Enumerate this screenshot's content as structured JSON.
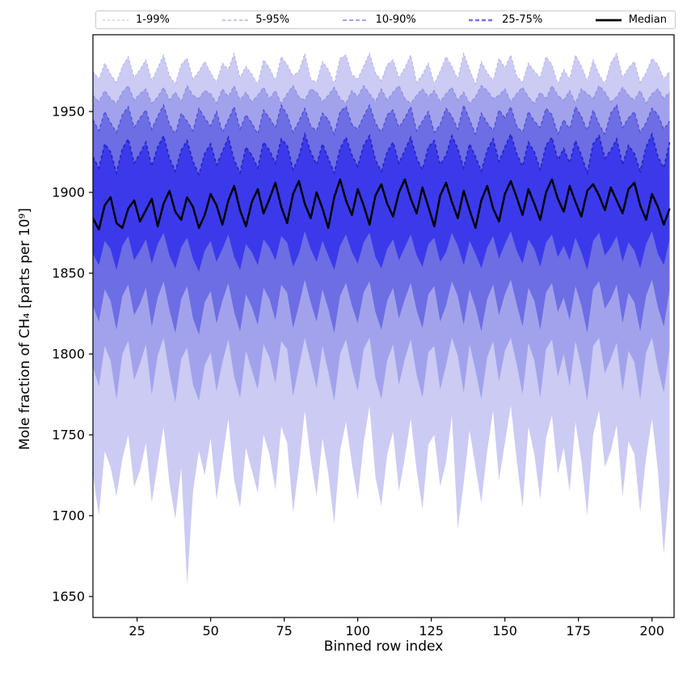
{
  "figure": {
    "background": "#ffffff"
  },
  "legend": {
    "items": [
      {
        "label": "1-99%",
        "color": "#b9b9ee",
        "line_width": 1.0,
        "dash": "3,3"
      },
      {
        "label": "5-95%",
        "color": "#a0a0ea",
        "line_width": 1.2,
        "dash": "4,3"
      },
      {
        "label": "10-90%",
        "color": "#8585e6",
        "line_width": 1.6,
        "dash": "5,3"
      },
      {
        "label": "25-75%",
        "color": "#7171e3",
        "line_width": 2.4,
        "dash": "5,3"
      },
      {
        "label": "Median",
        "color": "#000000",
        "line_width": 2.8,
        "dash": ""
      }
    ]
  },
  "axes": {
    "x_label": "Binned row index",
    "y_label": "Mole fraction of CH₄ [parts per 10⁹]",
    "x_ticks": [
      25,
      50,
      75,
      100,
      125,
      150,
      175,
      200
    ],
    "y_ticks": [
      1650,
      1700,
      1750,
      1800,
      1850,
      1900,
      1950
    ]
  },
  "chart_data": {
    "type": "area",
    "title": "",
    "xlabel": "Binned row index",
    "ylabel": "Mole fraction of CH₄ [parts per 10⁹]",
    "xlim": [
      10,
      207.5
    ],
    "ylim": [
      1637,
      1997.5
    ],
    "grid": false,
    "legend_position": "top",
    "x_start": 10,
    "x_step": 2,
    "bands": [
      {
        "name": "1-99%",
        "lower": "p01",
        "upper": "p99",
        "fill": "#cbcbf3",
        "edge": "#b3b3e9",
        "edge_width": 1.0,
        "dash": "3,3"
      },
      {
        "name": "5-95%",
        "lower": "p05",
        "upper": "p95",
        "fill": "#a2a2ec",
        "edge": "#8a8ae3",
        "edge_width": 1.1,
        "dash": "4,3"
      },
      {
        "name": "10-90%",
        "lower": "p10",
        "upper": "p90",
        "fill": "#6d6de4",
        "edge": "#4e4ed6",
        "edge_width": 1.3,
        "dash": "4,3"
      },
      {
        "name": "25-75%",
        "lower": "p25",
        "upper": "p75",
        "fill": "#3a3aeb",
        "edge": "#2525c0",
        "edge_width": 1.7,
        "dash": "4,3"
      }
    ],
    "median_style": {
      "name": "Median",
      "color": "#000000",
      "width": 2.5
    },
    "series": {
      "p01": [
        1726,
        1700,
        1740,
        1730,
        1712,
        1735,
        1750,
        1718,
        1728,
        1745,
        1708,
        1732,
        1755,
        1720,
        1698,
        1730,
        1657,
        1715,
        1740,
        1725,
        1748,
        1710,
        1735,
        1760,
        1722,
        1705,
        1742,
        1728,
        1714,
        1750,
        1738,
        1716,
        1755,
        1745,
        1702,
        1730,
        1765,
        1735,
        1712,
        1748,
        1726,
        1695,
        1740,
        1758,
        1732,
        1710,
        1745,
        1768,
        1724,
        1706,
        1738,
        1752,
        1715,
        1736,
        1760,
        1728,
        1704,
        1744,
        1750,
        1718,
        1733,
        1762,
        1692,
        1720,
        1753,
        1730,
        1708,
        1740,
        1765,
        1722,
        1745,
        1768,
        1735,
        1705,
        1755,
        1738,
        1710,
        1748,
        1762,
        1726,
        1742,
        1715,
        1758,
        1734,
        1700,
        1750,
        1765,
        1730,
        1740,
        1756,
        1712,
        1746,
        1738,
        1702,
        1736,
        1760,
        1728,
        1676,
        1720
      ],
      "p05": [
        1792,
        1780,
        1805,
        1796,
        1772,
        1800,
        1808,
        1784,
        1794,
        1806,
        1775,
        1799,
        1810,
        1788,
        1770,
        1797,
        1804,
        1781,
        1771,
        1793,
        1801,
        1777,
        1795,
        1809,
        1786,
        1773,
        1802,
        1790,
        1778,
        1806,
        1798,
        1782,
        1808,
        1803,
        1774,
        1792,
        1810,
        1795,
        1779,
        1805,
        1789,
        1771,
        1800,
        1809,
        1791,
        1777,
        1803,
        1810,
        1785,
        1772,
        1796,
        1806,
        1781,
        1797,
        1809,
        1787,
        1773,
        1801,
        1805,
        1778,
        1793,
        1810,
        1799,
        1776,
        1806,
        1790,
        1772,
        1798,
        1808,
        1783,
        1802,
        1810,
        1794,
        1775,
        1807,
        1796,
        1773,
        1803,
        1809,
        1786,
        1800,
        1780,
        1808,
        1792,
        1771,
        1805,
        1810,
        1788,
        1797,
        1807,
        1777,
        1802,
        1795,
        1772,
        1801,
        1810,
        1791,
        1776,
        1804
      ],
      "p10": [
        1830,
        1820,
        1840,
        1833,
        1815,
        1836,
        1843,
        1824,
        1831,
        1841,
        1817,
        1835,
        1845,
        1827,
        1813,
        1834,
        1842,
        1822,
        1812,
        1832,
        1839,
        1819,
        1833,
        1844,
        1826,
        1814,
        1837,
        1829,
        1818,
        1841,
        1834,
        1821,
        1843,
        1838,
        1816,
        1830,
        1846,
        1832,
        1820,
        1840,
        1828,
        1813,
        1836,
        1844,
        1830,
        1819,
        1838,
        1845,
        1826,
        1815,
        1833,
        1841,
        1822,
        1834,
        1844,
        1827,
        1816,
        1837,
        1842,
        1820,
        1830,
        1845,
        1836,
        1818,
        1840,
        1829,
        1814,
        1834,
        1843,
        1824,
        1837,
        1846,
        1831,
        1817,
        1841,
        1833,
        1815,
        1838,
        1844,
        1826,
        1835,
        1821,
        1842,
        1830,
        1813,
        1840,
        1845,
        1828,
        1834,
        1843,
        1819,
        1838,
        1832,
        1814,
        1836,
        1846,
        1829,
        1817,
        1840
      ],
      "p25": [
        1862,
        1855,
        1870,
        1865,
        1852,
        1867,
        1873,
        1858,
        1864,
        1871,
        1856,
        1868,
        1875,
        1861,
        1853,
        1866,
        1872,
        1859,
        1851,
        1864,
        1870,
        1857,
        1865,
        1874,
        1860,
        1852,
        1868,
        1863,
        1855,
        1871,
        1866,
        1858,
        1873,
        1869,
        1854,
        1862,
        1876,
        1865,
        1857,
        1870,
        1861,
        1852,
        1867,
        1874,
        1863,
        1856,
        1869,
        1875,
        1860,
        1853,
        1865,
        1871,
        1858,
        1866,
        1874,
        1861,
        1854,
        1868,
        1872,
        1857,
        1863,
        1875,
        1867,
        1855,
        1870,
        1862,
        1853,
        1866,
        1873,
        1859,
        1868,
        1876,
        1864,
        1856,
        1871,
        1865,
        1854,
        1869,
        1874,
        1860,
        1867,
        1858,
        1872,
        1863,
        1852,
        1870,
        1875,
        1861,
        1866,
        1873,
        1857,
        1869,
        1864,
        1853,
        1868,
        1876,
        1862,
        1855,
        1871
      ],
      "median": [
        1884,
        1877,
        1892,
        1897,
        1881,
        1878,
        1890,
        1895,
        1882,
        1889,
        1896,
        1879,
        1893,
        1901,
        1888,
        1883,
        1897,
        1891,
        1878,
        1886,
        1899,
        1892,
        1880,
        1895,
        1904,
        1889,
        1879,
        1894,
        1902,
        1887,
        1896,
        1906,
        1891,
        1881,
        1899,
        1907,
        1893,
        1884,
        1900,
        1890,
        1878,
        1897,
        1908,
        1895,
        1886,
        1902,
        1892,
        1880,
        1898,
        1905,
        1893,
        1885,
        1900,
        1908,
        1896,
        1887,
        1903,
        1891,
        1879,
        1898,
        1906,
        1894,
        1884,
        1901,
        1889,
        1878,
        1895,
        1904,
        1890,
        1882,
        1899,
        1907,
        1897,
        1886,
        1902,
        1893,
        1883,
        1900,
        1908,
        1896,
        1888,
        1904,
        1894,
        1885,
        1901,
        1905,
        1898,
        1889,
        1903,
        1895,
        1887,
        1902,
        1906,
        1892,
        1883,
        1899,
        1891,
        1880,
        1890
      ],
      "p75": [
        1922,
        1915,
        1930,
        1925,
        1912,
        1927,
        1933,
        1918,
        1924,
        1931,
        1916,
        1928,
        1935,
        1921,
        1913,
        1926,
        1932,
        1919,
        1911,
        1924,
        1930,
        1917,
        1925,
        1934,
        1920,
        1912,
        1928,
        1923,
        1915,
        1931,
        1926,
        1918,
        1933,
        1929,
        1914,
        1922,
        1936,
        1925,
        1917,
        1930,
        1921,
        1912,
        1927,
        1934,
        1923,
        1916,
        1929,
        1935,
        1920,
        1913,
        1925,
        1931,
        1918,
        1926,
        1934,
        1921,
        1914,
        1928,
        1932,
        1917,
        1923,
        1935,
        1927,
        1915,
        1930,
        1922,
        1913,
        1926,
        1933,
        1919,
        1928,
        1936,
        1924,
        1916,
        1931,
        1925,
        1914,
        1929,
        1934,
        1920,
        1927,
        1918,
        1932,
        1923,
        1912,
        1930,
        1935,
        1921,
        1926,
        1933,
        1917,
        1929,
        1924,
        1913,
        1928,
        1936,
        1922,
        1915,
        1931
      ],
      "p90": [
        1945,
        1938,
        1950,
        1943,
        1937,
        1948,
        1953,
        1940,
        1946,
        1951,
        1939,
        1947,
        1954,
        1942,
        1936,
        1949,
        1944,
        1938,
        1952,
        1946,
        1941,
        1950,
        1937,
        1945,
        1953,
        1939,
        1948,
        1943,
        1936,
        1951,
        1946,
        1940,
        1954,
        1948,
        1937,
        1944,
        1952,
        1941,
        1938,
        1949,
        1945,
        1936,
        1950,
        1953,
        1942,
        1939,
        1947,
        1954,
        1943,
        1937,
        1948,
        1951,
        1940,
        1946,
        1953,
        1938,
        1944,
        1950,
        1937,
        1942,
        1952,
        1947,
        1939,
        1954,
        1945,
        1936,
        1949,
        1943,
        1938,
        1951,
        1946,
        1953,
        1941,
        1937,
        1950,
        1944,
        1940,
        1952,
        1948,
        1936,
        1945,
        1939,
        1953,
        1947,
        1938,
        1951,
        1942,
        1936,
        1949,
        1954,
        1940,
        1946,
        1950,
        1937,
        1943,
        1952,
        1948,
        1939,
        1944
      ],
      "p95": [
        1960,
        1956,
        1963,
        1958,
        1955,
        1962,
        1966,
        1957,
        1961,
        1964,
        1955,
        1959,
        1965,
        1957,
        1962,
        1956,
        1966,
        1960,
        1958,
        1963,
        1961,
        1955,
        1964,
        1959,
        1966,
        1957,
        1962,
        1956,
        1960,
        1965,
        1958,
        1963,
        1955,
        1961,
        1966,
        1959,
        1957,
        1964,
        1962,
        1956,
        1960,
        1965,
        1958,
        1955,
        1963,
        1959,
        1966,
        1961,
        1956,
        1964,
        1957,
        1962,
        1966,
        1958,
        1955,
        1960,
        1964,
        1959,
        1963,
        1956,
        1961,
        1965,
        1957,
        1962,
        1955,
        1959,
        1966,
        1963,
        1958,
        1960,
        1964,
        1956,
        1961,
        1965,
        1959,
        1955,
        1962,
        1958,
        1966,
        1960,
        1957,
        1963,
        1955,
        1964,
        1961,
        1958,
        1966,
        1962,
        1956,
        1959,
        1965,
        1960,
        1957,
        1963,
        1955,
        1961,
        1964,
        1958,
        1962
      ],
      "p99": [
        1975,
        1970,
        1980,
        1973,
        1968,
        1978,
        1984,
        1971,
        1976,
        1982,
        1969,
        1977,
        1985,
        1972,
        1967,
        1979,
        1983,
        1970,
        1975,
        1981,
        1974,
        1968,
        1980,
        1976,
        1986,
        1971,
        1978,
        1973,
        1967,
        1982,
        1977,
        1969,
        1984,
        1979,
        1972,
        1975,
        1986,
        1970,
        1968,
        1981,
        1976,
        1967,
        1983,
        1985,
        1973,
        1970,
        1978,
        1986,
        1974,
        1969,
        1979,
        1982,
        1971,
        1977,
        1985,
        1968,
        1973,
        1980,
        1967,
        1975,
        1984,
        1978,
        1970,
        1986,
        1976,
        1967,
        1981,
        1974,
        1969,
        1983,
        1977,
        1985,
        1972,
        1968,
        1980,
        1975,
        1971,
        1984,
        1979,
        1967,
        1976,
        1970,
        1985,
        1978,
        1969,
        1982,
        1973,
        1967,
        1980,
        1986,
        1971,
        1977,
        1981,
        1968,
        1974,
        1983,
        1979,
        1970,
        1975
      ]
    }
  }
}
